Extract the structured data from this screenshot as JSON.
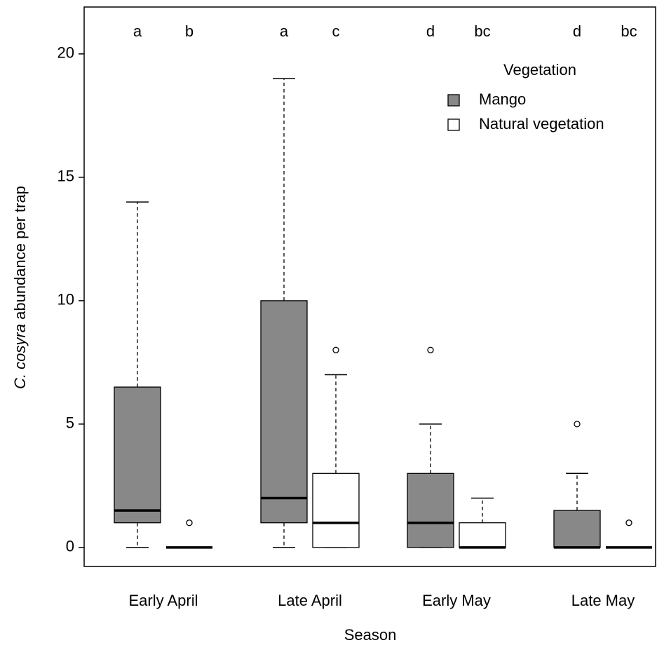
{
  "chart_data": {
    "type": "box",
    "xlabel": "Season",
    "ylabel_italic": "C. cosyra",
    "ylabel": "abundance per trap",
    "legend_title": "Vegetation",
    "legend": "top-right",
    "categories": [
      "Early April",
      "Late April",
      "Early May",
      "Late May"
    ],
    "ylim": [
      -0.77,
      21.9
    ],
    "yticks": [
      0,
      5,
      10,
      15,
      20
    ],
    "series": [
      {
        "name": "Mango",
        "color": "#888888",
        "min": [
          0,
          0,
          0,
          0
        ],
        "q1": [
          1,
          1,
          0,
          0
        ],
        "median": [
          1.5,
          2,
          1,
          0
        ],
        "q3": [
          6.5,
          10,
          3,
          1.5
        ],
        "max": [
          14,
          19,
          5,
          3
        ],
        "outliers": [
          [],
          [],
          [
            8
          ],
          [
            5
          ]
        ],
        "letters": [
          "a",
          "a",
          "d",
          "d"
        ]
      },
      {
        "name": "Natural vegetation",
        "color": "#ffffff",
        "min": [
          0,
          0,
          0,
          0
        ],
        "q1": [
          0,
          0,
          0,
          0
        ],
        "median": [
          0,
          1,
          0,
          0
        ],
        "q3": [
          0,
          3,
          1,
          0
        ],
        "max": [
          0,
          7,
          2,
          0
        ],
        "outliers": [
          [
            1
          ],
          [
            8
          ],
          [],
          [
            1
          ]
        ],
        "letters": [
          "b",
          "c",
          "bc",
          "bc"
        ]
      }
    ]
  }
}
